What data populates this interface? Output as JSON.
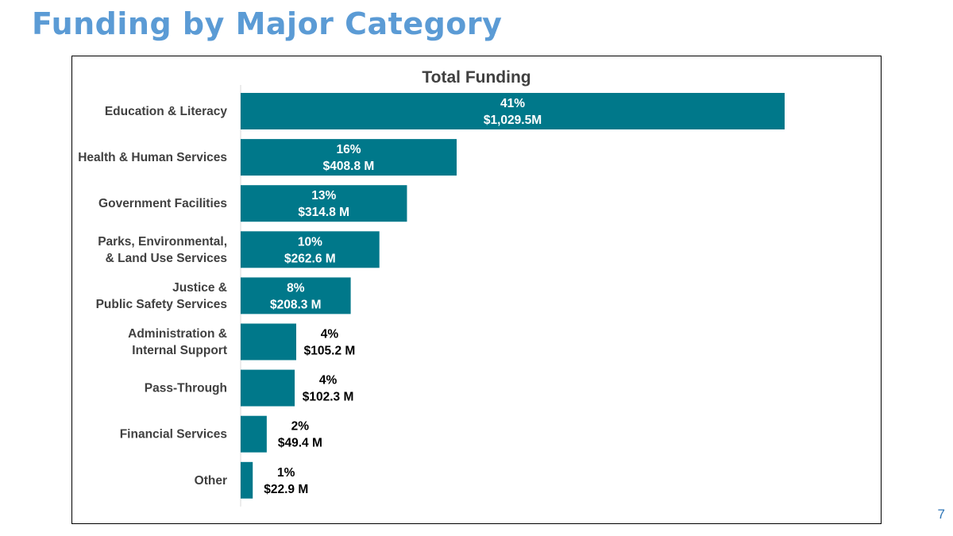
{
  "slide": {
    "title": "Funding by Major Category",
    "page_number": "7"
  },
  "colors": {
    "title": "#5b9bd5",
    "bar": "#00788a",
    "axis": "#d9d9d9",
    "inside_label": "#ffffff",
    "outside_label": "#000000"
  },
  "chart_data": {
    "type": "bar",
    "orientation": "horizontal",
    "title": "Total Funding",
    "units": "$ M",
    "grid": false,
    "categories": [
      [
        "Education & Literacy"
      ],
      [
        "Health & Human Services"
      ],
      [
        "Government Facilities"
      ],
      [
        "Parks, Environmental,",
        "& Land Use Services"
      ],
      [
        "Justice &",
        "Public Safety Services"
      ],
      [
        "Administration &",
        "Internal Support"
      ],
      [
        "Pass-Through"
      ],
      [
        "Financial Services"
      ],
      [
        "Other"
      ]
    ],
    "values": [
      1029.5,
      408.8,
      314.8,
      262.6,
      208.3,
      105.2,
      102.3,
      49.4,
      22.9
    ],
    "percent_labels": [
      "41%",
      "16%",
      "13%",
      "10%",
      "8%",
      "4%",
      "4%",
      "2%",
      "1%"
    ],
    "value_labels": [
      "$1,029.5M",
      "$408.8 M",
      "$314.8 M",
      "$262.6 M",
      "$208.3 M",
      "$105.2 M",
      "$102.3 M",
      "$49.4 M",
      "$22.9 M"
    ],
    "xlim": [
      0,
      1029.5
    ]
  }
}
